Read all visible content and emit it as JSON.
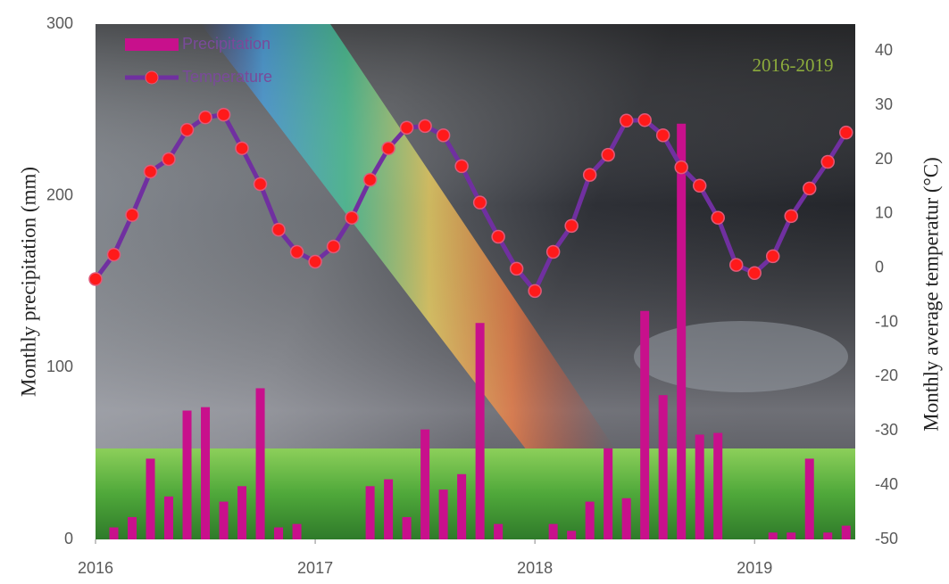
{
  "chart_data": {
    "type": "combo",
    "annotation": "2016-2019",
    "ylabel": "Monthly precipitation (mm)",
    "y2label": "Monthly average temperatur (°C)",
    "x": [
      0,
      1,
      2,
      3,
      4,
      5,
      6,
      7,
      8,
      9,
      10,
      11,
      12,
      13,
      14,
      15,
      16,
      17,
      18,
      19,
      20,
      21,
      22,
      23,
      24,
      25,
      26,
      27,
      28,
      29,
      30,
      31,
      32,
      33,
      34,
      35,
      36,
      37,
      38,
      39,
      40,
      41
    ],
    "xlim": [
      0,
      41.5
    ],
    "xticks": [
      {
        "value": 0,
        "label": "2016"
      },
      {
        "value": 12,
        "label": "2017"
      },
      {
        "value": 24,
        "label": "2018"
      },
      {
        "value": 36,
        "label": "2019"
      }
    ],
    "ylim": [
      0,
      300
    ],
    "yticks": [
      0,
      100,
      200,
      300
    ],
    "y2lim": [
      -50,
      45
    ],
    "y2ticks": [
      -50,
      -40,
      -30,
      -20,
      -10,
      0,
      10,
      20,
      30,
      40
    ],
    "grid": false,
    "legend": "top-left",
    "series": [
      {
        "name": "Precipitation",
        "type": "bar",
        "color": "#c8108c",
        "values": [
          0,
          7,
          13,
          47,
          25,
          75,
          77,
          22,
          31,
          88,
          7,
          9,
          0,
          0,
          0,
          31,
          35,
          13,
          64,
          29,
          38,
          126,
          9,
          0,
          0,
          9,
          5,
          22,
          53,
          24,
          133,
          84,
          242,
          61,
          62,
          0,
          0,
          4,
          4,
          47,
          4,
          8
        ]
      },
      {
        "name": "Temperature",
        "type": "line",
        "axis": "y2",
        "color": "#7030a0",
        "marker_color": "#ff1a1a",
        "values": [
          -2,
          2.5,
          9.8,
          17.8,
          20.1,
          25.5,
          27.8,
          28.3,
          22.1,
          15.5,
          7.1,
          3,
          1.2,
          4,
          9.3,
          16.3,
          22.1,
          25.9,
          26.2,
          24.5,
          18.8,
          12.1,
          5.8,
          -0.1,
          -4.2,
          3,
          7.8,
          17.2,
          20.9,
          27.2,
          27.3,
          24.5,
          18.6,
          15.2,
          9.3,
          0.6,
          -0.9,
          2.2,
          9.6,
          14.7,
          19.6,
          25
        ]
      }
    ]
  }
}
